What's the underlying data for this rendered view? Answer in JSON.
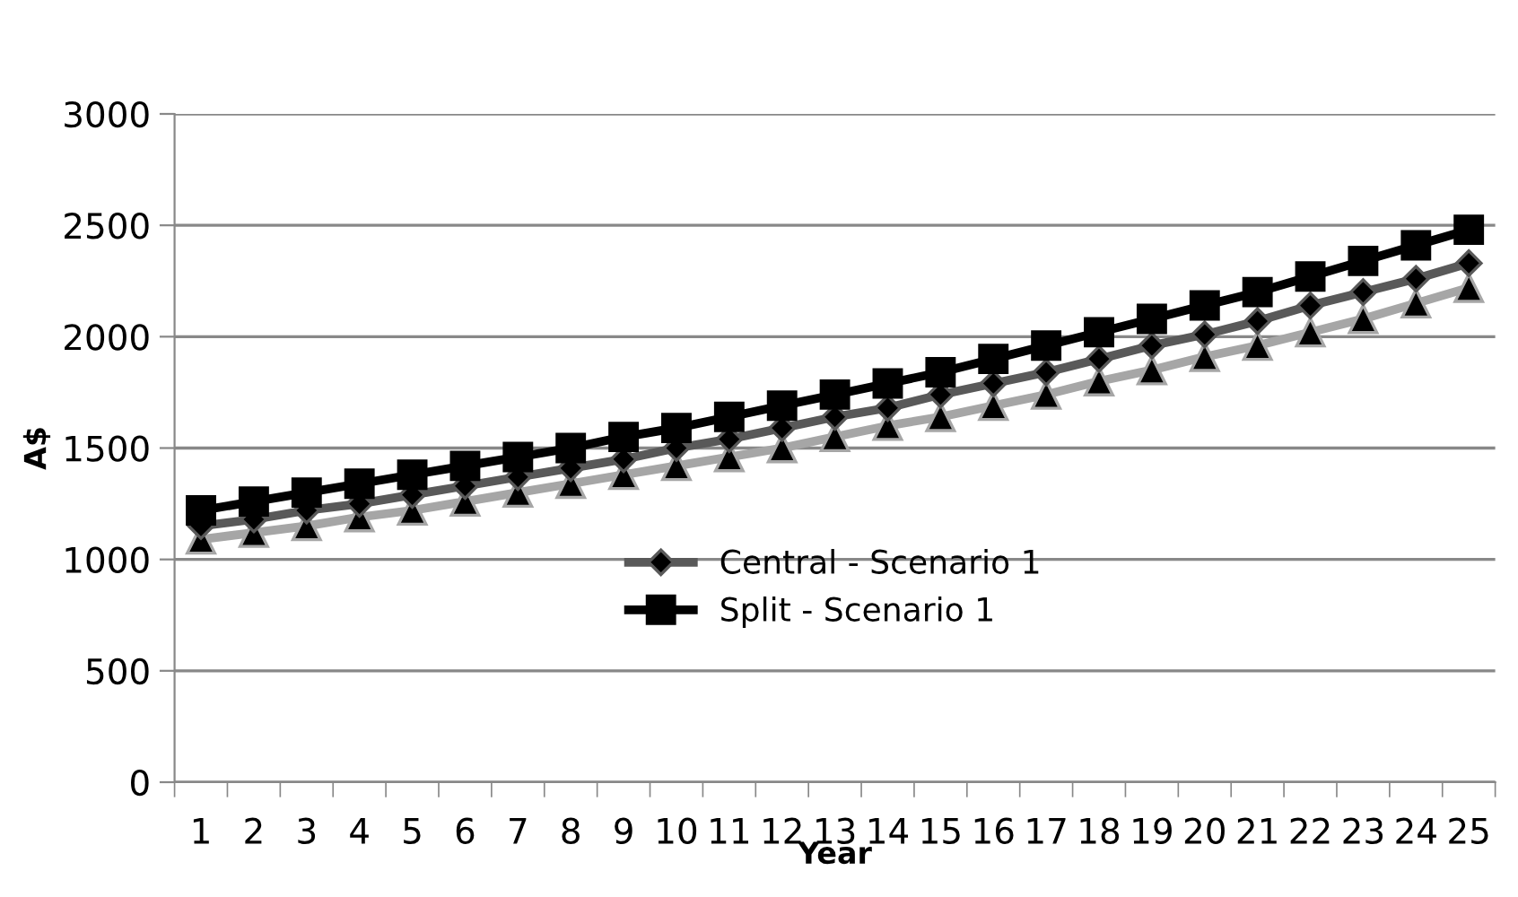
{
  "chart_data": {
    "type": "line",
    "xlabel": "Year",
    "ylabel": "A$",
    "categories": [
      "1",
      "2",
      "3",
      "4",
      "5",
      "6",
      "7",
      "8",
      "9",
      "10",
      "11",
      "12",
      "13",
      "14",
      "15",
      "16",
      "17",
      "18",
      "19",
      "20",
      "21",
      "22",
      "23",
      "24",
      "25"
    ],
    "series": [
      {
        "color": "#a6a6a6",
        "marker": "triangle",
        "values": [
          1090,
          1120,
          1150,
          1190,
          1220,
          1260,
          1300,
          1340,
          1380,
          1420,
          1460,
          1500,
          1550,
          1600,
          1640,
          1690,
          1740,
          1800,
          1850,
          1910,
          1960,
          2020,
          2080,
          2150,
          2220
        ]
      },
      {
        "name": "Central - Scenario 1",
        "color": "#595959",
        "marker": "diamond",
        "values": [
          1150,
          1180,
          1220,
          1250,
          1290,
          1330,
          1370,
          1410,
          1450,
          1500,
          1540,
          1590,
          1640,
          1680,
          1740,
          1790,
          1840,
          1900,
          1960,
          2010,
          2070,
          2140,
          2200,
          2260,
          2330
        ]
      },
      {
        "name": "Split - Scenario 1",
        "color": "#000000",
        "marker": "square",
        "values": [
          1220,
          1260,
          1300,
          1340,
          1380,
          1420,
          1460,
          1500,
          1550,
          1590,
          1640,
          1690,
          1740,
          1790,
          1840,
          1900,
          1960,
          2020,
          2080,
          2140,
          2200,
          2270,
          2340,
          2410,
          2480
        ]
      }
    ],
    "ylim": [
      0,
      3000
    ],
    "yticks": [
      0,
      500,
      1000,
      1500,
      2000,
      2500,
      3000
    ],
    "grid": "y",
    "legend": "center",
    "line_style": "solid"
  }
}
